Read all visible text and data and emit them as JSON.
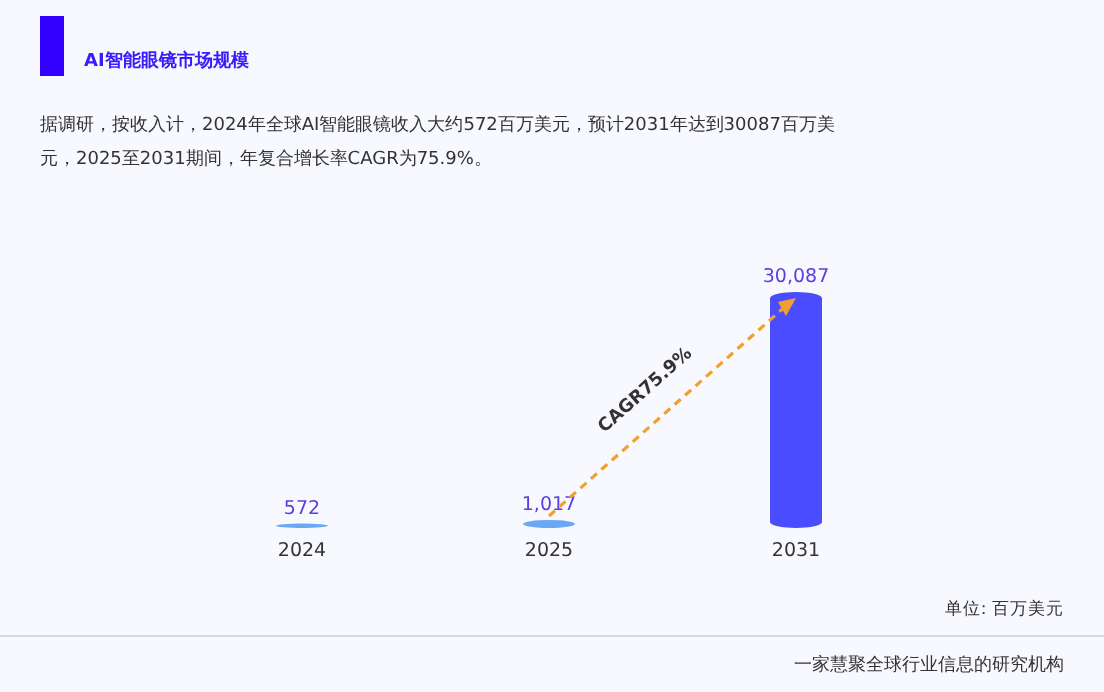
{
  "chart_data": {
    "type": "bar",
    "title": "AI智能眼镜市场规模",
    "subtitle": "据调研，按收入计，2024年全球AI智能眼镜收入大约572百万美元，预计2031年达到30087百万美元，2025至2031期间，年复合增长率CAGR为75.9%。",
    "categories": [
      "2024",
      "2025",
      "2031"
    ],
    "values": [
      572,
      1017,
      30087
    ],
    "colors": [
      "#6aa8f5",
      "#6aa8f5",
      "#4a4cff"
    ],
    "value_labels": [
      "572",
      "1,017",
      "30,087"
    ],
    "annotations": [
      "CAGR75.9%",
      "单位: 百万美元",
      "一家慧聚全球行业信息的研究机构"
    ]
  }
}
